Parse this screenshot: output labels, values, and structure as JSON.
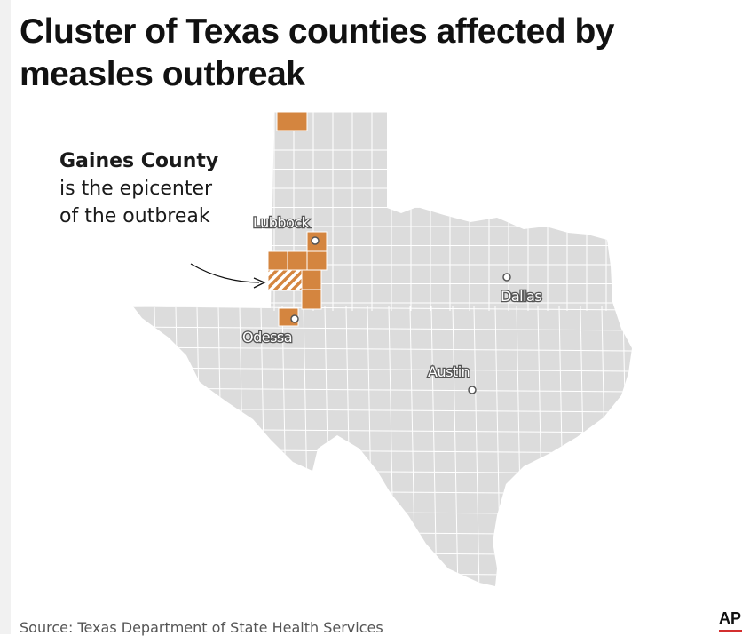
{
  "title": "Cluster of Texas counties affected by measles outbreak",
  "annotation": {
    "bold": "Gaines County",
    "rest": " is the epicenter of the outbreak"
  },
  "cities": [
    {
      "name": "Lubbock"
    },
    {
      "name": "Dallas"
    },
    {
      "name": "Odessa"
    },
    {
      "name": "Austin"
    }
  ],
  "colors": {
    "affected": "#d4853f",
    "state": "#dcdcdc",
    "county_border": "#ffffff"
  },
  "source": "Source: Texas Department of State Health Services",
  "credit": "AP"
}
